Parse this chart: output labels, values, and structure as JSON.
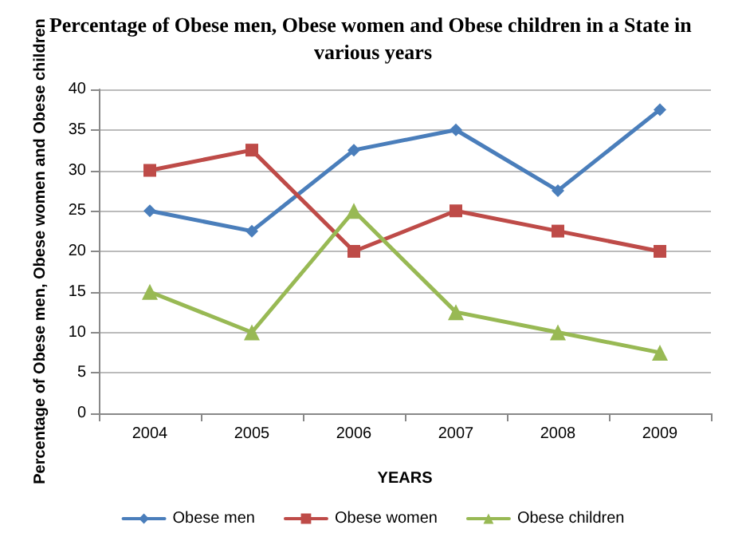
{
  "chart_data": {
    "type": "line",
    "title": "Percentage of Obese men, Obese women and Obese children in a State in various years",
    "xlabel": "YEARS",
    "ylabel": "Percentage of Obese men, Obese women and Obese children",
    "categories": [
      "2004",
      "2005",
      "2006",
      "2007",
      "2008",
      "2009"
    ],
    "series": [
      {
        "name": "Obese men",
        "color": "#4a7ebb",
        "marker": "diamond",
        "values": [
          25,
          22.5,
          32.5,
          35,
          27.5,
          37.5
        ]
      },
      {
        "name": "Obese women",
        "color": "#be4b48",
        "marker": "square",
        "values": [
          30,
          32.5,
          20,
          25,
          22.5,
          20
        ]
      },
      {
        "name": "Obese children",
        "color": "#98b954",
        "marker": "triangle",
        "values": [
          15,
          10,
          25,
          12.5,
          10,
          7.5
        ]
      }
    ],
    "ylim": [
      0,
      40
    ],
    "yticks": [
      0,
      5,
      10,
      15,
      20,
      25,
      30,
      35,
      40
    ],
    "grid": "y",
    "legend": "bottom",
    "line_style": "solid"
  }
}
